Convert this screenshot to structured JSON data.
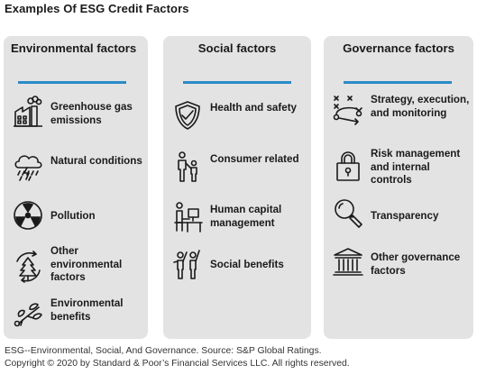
{
  "title": "Examples Of ESG Credit Factors",
  "accent_color": "#2a8bc8",
  "panel_color": "#e3e3e3",
  "columns": [
    {
      "heading": "Environmental factors",
      "items": [
        {
          "label": "Greenhouse gas emissions",
          "icon": "factory-icon"
        },
        {
          "label": "Natural conditions",
          "icon": "storm-cloud-icon"
        },
        {
          "label": "Pollution",
          "icon": "radiation-icon"
        },
        {
          "label": "Other environmental factors",
          "icon": "tree-cycle-icon"
        },
        {
          "label": "Environmental benefits",
          "icon": "leaf-sprout-icon"
        }
      ]
    },
    {
      "heading": "Social factors",
      "items": [
        {
          "label": "Health and safety",
          "icon": "shield-check-icon"
        },
        {
          "label": "Consumer related",
          "icon": "parent-child-icon"
        },
        {
          "label": "Human capital management",
          "icon": "desk-worker-icon"
        },
        {
          "label": "Social benefits",
          "icon": "people-raising-hands-icon"
        }
      ]
    },
    {
      "heading": "Governance factors",
      "items": [
        {
          "label": "Strategy, execution, and monitoring",
          "icon": "strategy-arrows-icon"
        },
        {
          "label": "Risk management and internal controls",
          "icon": "padlock-icon"
        },
        {
          "label": "Transparency",
          "icon": "magnifier-icon"
        },
        {
          "label": "Other governance factors",
          "icon": "government-building-icon"
        }
      ]
    }
  ],
  "footnote": {
    "line1": "ESG--Environmental, Social, And Governance. Source: S&P Global Ratings.",
    "line2": "Copyright © 2020  by Standard & Poor’s Financial Services LLC. All rights reserved."
  }
}
